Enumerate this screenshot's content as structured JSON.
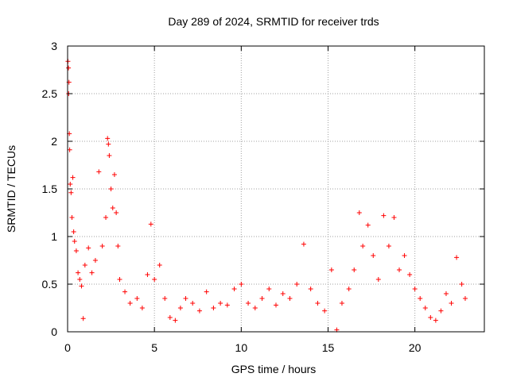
{
  "chart_data": {
    "type": "scatter",
    "title": "Day 289 of 2024, SRMTID for receiver trds",
    "xlabel": "GPS time / hours",
    "ylabel": "SRMTID / TECUs",
    "xlim": [
      0,
      24
    ],
    "ylim": [
      0,
      3
    ],
    "xticks": [
      0,
      5,
      10,
      15,
      20
    ],
    "yticks": [
      0,
      0.5,
      1,
      1.5,
      2,
      2.5,
      3
    ],
    "xtick_labels": [
      "0",
      "5",
      "10",
      "15",
      "20"
    ],
    "ytick_labels": [
      "0",
      "0.5",
      "1",
      "1.5",
      "2",
      "2.5",
      "3"
    ],
    "grid": true,
    "marker": "+",
    "marker_color": "#ff0000",
    "series": [
      {
        "name": "SRMTID",
        "points": [
          [
            0.02,
            2.84
          ],
          [
            0.05,
            2.77
          ],
          [
            0.08,
            2.62
          ],
          [
            0.06,
            2.5
          ],
          [
            0.1,
            2.08
          ],
          [
            0.12,
            1.91
          ],
          [
            0.15,
            1.55
          ],
          [
            0.2,
            1.46
          ],
          [
            0.3,
            1.62
          ],
          [
            0.25,
            1.2
          ],
          [
            0.35,
            1.05
          ],
          [
            0.4,
            0.95
          ],
          [
            0.5,
            0.85
          ],
          [
            0.6,
            0.62
          ],
          [
            0.7,
            0.55
          ],
          [
            0.8,
            0.48
          ],
          [
            0.9,
            0.14
          ],
          [
            1.0,
            0.7
          ],
          [
            1.2,
            0.88
          ],
          [
            1.4,
            0.62
          ],
          [
            1.6,
            0.75
          ],
          [
            1.8,
            1.68
          ],
          [
            2.0,
            0.9
          ],
          [
            2.2,
            1.2
          ],
          [
            2.3,
            2.03
          ],
          [
            2.35,
            1.97
          ],
          [
            2.4,
            1.85
          ],
          [
            2.5,
            1.5
          ],
          [
            2.6,
            1.3
          ],
          [
            2.7,
            1.65
          ],
          [
            2.8,
            1.25
          ],
          [
            2.9,
            0.9
          ],
          [
            3.0,
            0.55
          ],
          [
            3.3,
            0.42
          ],
          [
            3.6,
            0.3
          ],
          [
            4.0,
            0.35
          ],
          [
            4.3,
            0.25
          ],
          [
            4.6,
            0.6
          ],
          [
            4.8,
            1.13
          ],
          [
            5.0,
            0.55
          ],
          [
            5.3,
            0.7
          ],
          [
            5.6,
            0.35
          ],
          [
            5.9,
            0.15
          ],
          [
            6.2,
            0.12
          ],
          [
            6.5,
            0.25
          ],
          [
            6.8,
            0.35
          ],
          [
            7.2,
            0.3
          ],
          [
            7.6,
            0.22
          ],
          [
            8.0,
            0.42
          ],
          [
            8.4,
            0.25
          ],
          [
            8.8,
            0.3
          ],
          [
            9.2,
            0.28
          ],
          [
            9.6,
            0.45
          ],
          [
            10.0,
            0.5
          ],
          [
            10.4,
            0.3
          ],
          [
            10.8,
            0.25
          ],
          [
            11.2,
            0.35
          ],
          [
            11.6,
            0.45
          ],
          [
            12.0,
            0.28
          ],
          [
            12.4,
            0.4
          ],
          [
            12.8,
            0.35
          ],
          [
            13.2,
            0.5
          ],
          [
            13.6,
            0.92
          ],
          [
            14.0,
            0.45
          ],
          [
            14.4,
            0.3
          ],
          [
            14.8,
            0.22
          ],
          [
            15.2,
            0.65
          ],
          [
            15.5,
            0.02
          ],
          [
            15.8,
            0.3
          ],
          [
            16.2,
            0.45
          ],
          [
            16.5,
            0.65
          ],
          [
            16.8,
            1.25
          ],
          [
            17.0,
            0.9
          ],
          [
            17.3,
            1.12
          ],
          [
            17.6,
            0.8
          ],
          [
            17.9,
            0.55
          ],
          [
            18.2,
            1.22
          ],
          [
            18.5,
            0.9
          ],
          [
            18.8,
            1.2
          ],
          [
            19.1,
            0.65
          ],
          [
            19.4,
            0.8
          ],
          [
            19.7,
            0.6
          ],
          [
            20.0,
            0.45
          ],
          [
            20.3,
            0.35
          ],
          [
            20.6,
            0.25
          ],
          [
            20.9,
            0.15
          ],
          [
            21.2,
            0.12
          ],
          [
            21.5,
            0.22
          ],
          [
            21.8,
            0.4
          ],
          [
            22.1,
            0.3
          ],
          [
            22.4,
            0.78
          ],
          [
            22.7,
            0.5
          ],
          [
            22.9,
            0.35
          ]
        ]
      }
    ]
  }
}
